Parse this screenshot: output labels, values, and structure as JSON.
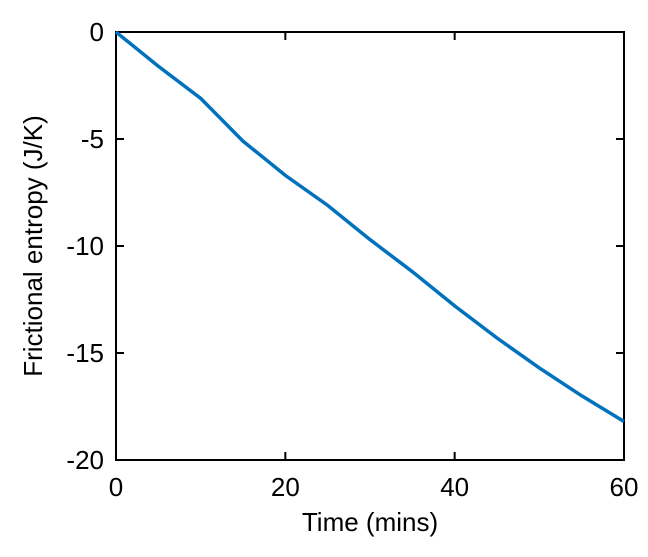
{
  "chart_data": {
    "type": "line",
    "x_label": "Time (mins)",
    "y_label": "Frictional entropy (J/K)",
    "x": [
      0,
      5,
      10,
      15,
      20,
      25,
      30,
      35,
      40,
      45,
      50,
      55,
      60
    ],
    "series": [
      {
        "color": "#0072bd",
        "values": [
          0,
          -1.6,
          -3.1,
          -5.1,
          -6.7,
          -8.1,
          -9.7,
          -11.2,
          -12.8,
          -14.3,
          -15.7,
          -17.0,
          -18.2
        ]
      }
    ],
    "xlim": [
      0,
      60
    ],
    "xticks": [
      0,
      20,
      40,
      60
    ],
    "ylim": [
      -20,
      0
    ],
    "yticks": [
      -20,
      -15,
      -10,
      -5,
      0
    ]
  }
}
